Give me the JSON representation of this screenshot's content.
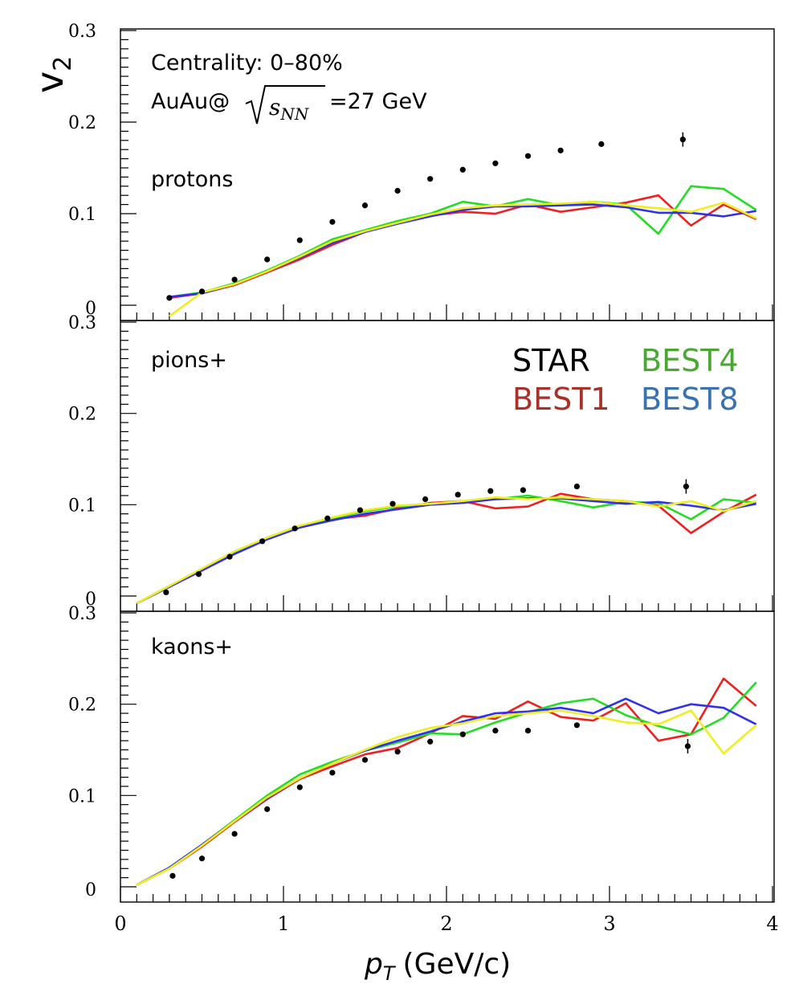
{
  "chart_data": {
    "type": "line",
    "ylabel": "v",
    "ylabel_sub": "2",
    "xlabel": "p",
    "xlabel_sub": "T",
    "xlabel_units": "(GeV/c)",
    "xlim": [
      0,
      4
    ],
    "x_ticks": [
      "0",
      "1",
      "2",
      "3",
      "4"
    ],
    "y_ticks": [
      "0",
      "0.1",
      "0.2",
      "0.3"
    ],
    "ylim": [
      -0.012,
      0.3
    ],
    "annotations": {
      "centrality": "Centrality: 0–80%",
      "system": "AuAu@",
      "sqrt_var": "s",
      "sqrt_sub": "NN",
      "energy": "=27 GeV"
    },
    "legend": [
      {
        "label": "STAR",
        "color": "#000000"
      },
      {
        "label": "BEST1",
        "color": "#a83228"
      },
      {
        "label": "BEST4",
        "color": "#4aa832"
      },
      {
        "label": "BEST8",
        "color": "#3a72b0"
      }
    ],
    "series_colors": {
      "BEST1": "#ee2020",
      "BEST4": "#22dd22",
      "BEST8": "#3030ee",
      "BEST8_line": "#3030ee",
      "BEST_yellow": "#eeee22"
    },
    "panels": [
      {
        "name": "protons",
        "star": {
          "x": [
            0.3,
            0.5,
            0.7,
            0.9,
            1.1,
            1.3,
            1.5,
            1.7,
            1.9,
            2.1,
            2.3,
            2.5,
            2.7,
            2.95,
            3.45
          ],
          "y": [
            0.008,
            0.015,
            0.028,
            0.05,
            0.071,
            0.091,
            0.109,
            0.125,
            0.138,
            0.148,
            0.155,
            0.163,
            0.169,
            0.176,
            0.181
          ]
        },
        "series": [
          {
            "name": "BEST1",
            "x": [
              0.3,
              0.5,
              0.7,
              0.9,
              1.1,
              1.3,
              1.5,
              1.7,
              1.9,
              2.1,
              2.3,
              2.5,
              2.7,
              2.9,
              3.1,
              3.3,
              3.5,
              3.7,
              3.9
            ],
            "y": [
              0.008,
              0.013,
              0.022,
              0.036,
              0.05,
              0.066,
              0.08,
              0.089,
              0.098,
              0.102,
              0.1,
              0.11,
              0.102,
              0.107,
              0.112,
              0.12,
              0.087,
              0.11,
              0.094
            ]
          },
          {
            "name": "BEST4",
            "x": [
              0.3,
              0.5,
              0.7,
              0.9,
              1.1,
              1.3,
              1.5,
              1.7,
              1.9,
              2.1,
              2.3,
              2.5,
              2.7,
              2.9,
              3.1,
              3.3,
              3.5,
              3.7,
              3.9
            ],
            "y": [
              0.009,
              0.014,
              0.024,
              0.038,
              0.054,
              0.072,
              0.082,
              0.092,
              0.1,
              0.113,
              0.108,
              0.116,
              0.109,
              0.113,
              0.11,
              0.078,
              0.13,
              0.127,
              0.104
            ]
          },
          {
            "name": "BEST8",
            "x": [
              0.3,
              0.5,
              0.7,
              0.9,
              1.1,
              1.3,
              1.5,
              1.7,
              1.9,
              2.1,
              2.3,
              2.5,
              2.7,
              2.9,
              3.1,
              3.3,
              3.5,
              3.7,
              3.9
            ],
            "y": [
              0.009,
              0.013,
              0.023,
              0.037,
              0.052,
              0.068,
              0.08,
              0.089,
              0.097,
              0.104,
              0.108,
              0.108,
              0.109,
              0.11,
              0.107,
              0.101,
              0.101,
              0.097,
              0.103
            ]
          },
          {
            "name": "BEST_yellow",
            "x": [
              0.3,
              0.5,
              0.7,
              0.9,
              1.1,
              1.3,
              1.5,
              1.7,
              1.9,
              2.1,
              2.3,
              2.5,
              2.7,
              2.9,
              3.1,
              3.3,
              3.5,
              3.7,
              3.9
            ],
            "y": [
              -0.012,
              0.014,
              0.023,
              0.037,
              0.053,
              0.07,
              0.081,
              0.09,
              0.099,
              0.106,
              0.109,
              0.11,
              0.111,
              0.113,
              0.109,
              0.106,
              0.102,
              0.112,
              0.095
            ]
          }
        ]
      },
      {
        "name": "pions+",
        "star": {
          "x": [
            0.28,
            0.48,
            0.67,
            0.87,
            1.07,
            1.27,
            1.47,
            1.67,
            1.87,
            2.07,
            2.27,
            2.47,
            2.8,
            3.47
          ],
          "y": [
            0.004,
            0.024,
            0.043,
            0.06,
            0.074,
            0.085,
            0.094,
            0.101,
            0.106,
            0.111,
            0.115,
            0.116,
            0.12,
            0.12
          ]
        },
        "series": [
          {
            "name": "BEST1",
            "x": [
              0.1,
              0.3,
              0.5,
              0.7,
              0.9,
              1.1,
              1.3,
              1.5,
              1.7,
              1.9,
              2.1,
              2.3,
              2.5,
              2.7,
              2.9,
              3.1,
              3.3,
              3.5,
              3.7,
              3.9
            ],
            "y": [
              -0.008,
              0.01,
              0.028,
              0.047,
              0.063,
              0.076,
              0.084,
              0.088,
              0.096,
              0.102,
              0.104,
              0.096,
              0.098,
              0.112,
              0.106,
              0.104,
              0.099,
              0.069,
              0.092,
              0.111
            ]
          },
          {
            "name": "BEST4",
            "x": [
              0.1,
              0.3,
              0.5,
              0.7,
              0.9,
              1.1,
              1.3,
              1.5,
              1.7,
              1.9,
              2.1,
              2.3,
              2.5,
              2.7,
              2.9,
              3.1,
              3.3,
              3.5,
              3.7,
              3.9
            ],
            "y": [
              -0.008,
              0.011,
              0.029,
              0.048,
              0.064,
              0.077,
              0.085,
              0.093,
              0.098,
              0.1,
              0.103,
              0.106,
              0.11,
              0.104,
              0.097,
              0.103,
              0.102,
              0.084,
              0.106,
              0.102
            ]
          },
          {
            "name": "BEST8",
            "x": [
              0.1,
              0.3,
              0.5,
              0.7,
              0.9,
              1.1,
              1.3,
              1.5,
              1.7,
              1.9,
              2.1,
              2.3,
              2.5,
              2.7,
              2.9,
              3.1,
              3.3,
              3.5,
              3.7,
              3.9
            ],
            "y": [
              -0.008,
              0.01,
              0.028,
              0.046,
              0.062,
              0.075,
              0.083,
              0.09,
              0.095,
              0.1,
              0.102,
              0.106,
              0.107,
              0.107,
              0.104,
              0.101,
              0.103,
              0.099,
              0.094,
              0.101
            ]
          },
          {
            "name": "BEST_yellow",
            "x": [
              0.1,
              0.3,
              0.5,
              0.7,
              0.9,
              1.1,
              1.3,
              1.5,
              1.7,
              1.9,
              2.1,
              2.3,
              2.5,
              2.7,
              2.9,
              3.1,
              3.3,
              3.5,
              3.7,
              3.9
            ],
            "y": [
              -0.008,
              0.011,
              0.03,
              0.049,
              0.064,
              0.077,
              0.086,
              0.094,
              0.099,
              0.101,
              0.104,
              0.108,
              0.106,
              0.108,
              0.106,
              0.104,
              0.098,
              0.104,
              0.093,
              0.104
            ]
          }
        ]
      },
      {
        "name": "kaons+",
        "star": {
          "x": [
            0.32,
            0.5,
            0.7,
            0.9,
            1.1,
            1.3,
            1.5,
            1.7,
            1.9,
            2.1,
            2.3,
            2.5,
            2.8,
            3.48
          ],
          "y": [
            0.012,
            0.031,
            0.058,
            0.085,
            0.109,
            0.125,
            0.139,
            0.148,
            0.159,
            0.167,
            0.171,
            0.171,
            0.177,
            0.154
          ]
        },
        "series": [
          {
            "name": "BEST1",
            "x": [
              0.1,
              0.3,
              0.5,
              0.7,
              0.9,
              1.1,
              1.3,
              1.5,
              1.7,
              1.9,
              2.1,
              2.3,
              2.5,
              2.7,
              2.9,
              3.1,
              3.3,
              3.5,
              3.7,
              3.9
            ],
            "y": [
              0.002,
              0.02,
              0.044,
              0.071,
              0.096,
              0.118,
              0.132,
              0.145,
              0.152,
              0.168,
              0.187,
              0.184,
              0.203,
              0.186,
              0.182,
              0.201,
              0.16,
              0.167,
              0.228,
              0.198
            ]
          },
          {
            "name": "BEST4",
            "x": [
              0.1,
              0.3,
              0.5,
              0.7,
              0.9,
              1.1,
              1.3,
              1.5,
              1.7,
              1.9,
              2.1,
              2.3,
              2.5,
              2.7,
              2.9,
              3.1,
              3.3,
              3.5,
              3.7,
              3.9
            ],
            "y": [
              0.002,
              0.021,
              0.046,
              0.073,
              0.1,
              0.123,
              0.137,
              0.149,
              0.158,
              0.168,
              0.167,
              0.18,
              0.191,
              0.201,
              0.206,
              0.188,
              0.176,
              0.167,
              0.185,
              0.224
            ]
          },
          {
            "name": "BEST8",
            "x": [
              0.1,
              0.3,
              0.5,
              0.7,
              0.9,
              1.1,
              1.3,
              1.5,
              1.7,
              1.9,
              2.1,
              2.3,
              2.5,
              2.7,
              2.9,
              3.1,
              3.3,
              3.5,
              3.7,
              3.9
            ],
            "y": [
              0.002,
              0.021,
              0.046,
              0.072,
              0.097,
              0.119,
              0.135,
              0.149,
              0.16,
              0.17,
              0.181,
              0.19,
              0.192,
              0.196,
              0.19,
              0.206,
              0.19,
              0.2,
              0.196,
              0.178
            ]
          },
          {
            "name": "BEST_yellow",
            "x": [
              0.1,
              0.3,
              0.5,
              0.7,
              0.9,
              1.1,
              1.3,
              1.5,
              1.7,
              1.9,
              2.1,
              2.3,
              2.5,
              2.7,
              2.9,
              3.1,
              3.3,
              3.5,
              3.7,
              3.9
            ],
            "y": [
              0.002,
              0.02,
              0.045,
              0.072,
              0.098,
              0.119,
              0.135,
              0.15,
              0.164,
              0.174,
              0.179,
              0.187,
              0.19,
              0.193,
              0.187,
              0.18,
              0.178,
              0.193,
              0.146,
              0.177
            ]
          }
        ]
      }
    ]
  }
}
